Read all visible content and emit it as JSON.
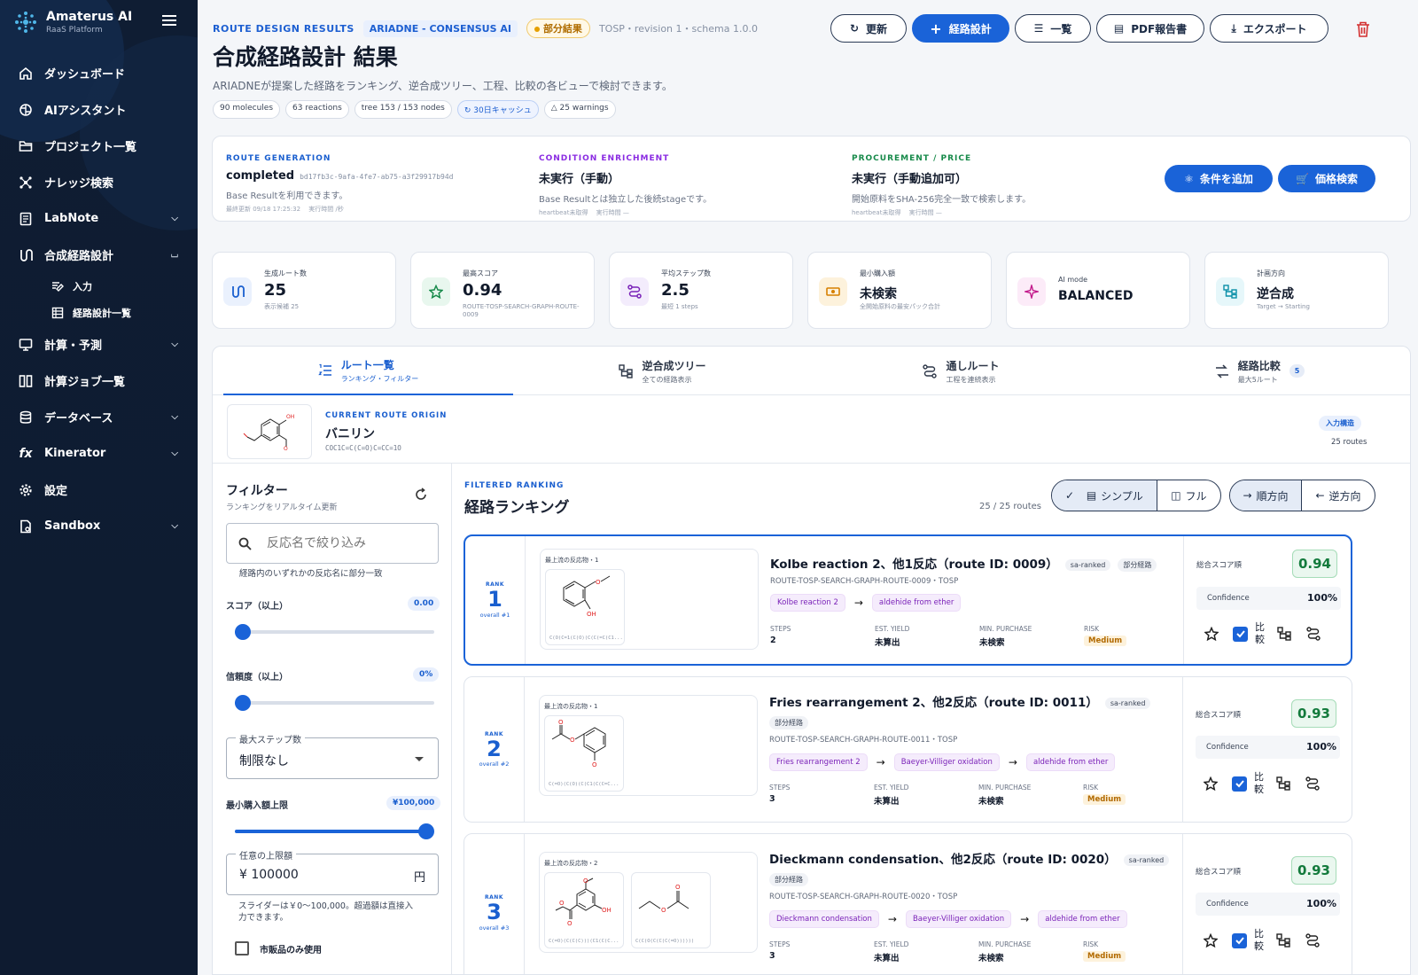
{
  "sidebar": {
    "brand": "Amaterus AI",
    "brand_sub": "RaaS Platform",
    "items": [
      {
        "label": "ダッシュボード"
      },
      {
        "label": "AIアシスタント"
      },
      {
        "label": "プロジェクト一覧"
      },
      {
        "label": "ナレッジ検索"
      },
      {
        "label": "LabNote"
      },
      {
        "label": "合成経路設計"
      },
      {
        "label": "入力"
      },
      {
        "label": "経路設計一覧"
      },
      {
        "label": "計算・予測"
      },
      {
        "label": "計算ジョブ一覧"
      },
      {
        "label": "データベース"
      },
      {
        "label": "Kinerator"
      },
      {
        "label": "設定"
      },
      {
        "label": "Sandbox"
      }
    ]
  },
  "header": {
    "crumb": "ROUTE DESIGN RESULTS",
    "engine": "ARIADNE - CONSENSUS AI",
    "status": "部分結果",
    "meta": "TOSP・revision 1・schema 1.0.0",
    "title": "合成経路設計 結果",
    "desc": "ARIADNEが提案した経路をランキング、逆合成ツリー、工程、比較の各ビューで検討できます。",
    "chips": [
      "90 molecules",
      "63 reactions",
      "tree 153 / 153 nodes",
      "30日キャッシュ",
      "25 warnings"
    ],
    "buttons": {
      "refresh": "更新",
      "design": "経路設計",
      "list": "一覧",
      "pdf": "PDF報告書",
      "export": "エクスポート"
    }
  },
  "stages": [
    {
      "head": "ROUTE GENERATION",
      "value": "completed",
      "hash": "bd17fb3c-9afa-4fe7-ab75-a3f29917b94d",
      "desc": "Base Resultを利用できます。",
      "meta": "最終更新 09/18 17:25:32　 実行時間 /秒",
      "color": "#1a5fcf"
    },
    {
      "head": "CONDITION ENRICHMENT",
      "value": "未実行（手動）",
      "desc": "Base Resultとは独立した後続stageです。",
      "meta": "heartbeat未取得　 実行時間 —",
      "color": "#8a2be2"
    },
    {
      "head": "PROCUREMENT / PRICE",
      "value": "未実行（手動追加可）",
      "desc": "開始原料をSHA-256完全一致で検索します。",
      "meta": "heartbeat未取得　 実行時間 —",
      "color": "#178a4a"
    }
  ],
  "stage_buttons": {
    "conditions": "条件を追加",
    "price": "価格検索"
  },
  "kpis": [
    {
      "label": "生成ルート数",
      "value": "25",
      "sub": "表示候補 25"
    },
    {
      "label": "最高スコア",
      "value": "0.94",
      "sub": "ROUTE-TOSP-SEARCH-GRAPH-ROUTE-0009"
    },
    {
      "label": "平均ステップ数",
      "value": "2.5",
      "sub": "最短 1 steps"
    },
    {
      "label": "最小購入額",
      "value": "未検索",
      "sub": "全開始原料の最安パック合計"
    },
    {
      "label": "AI mode",
      "value": "BALANCED",
      "sub": ""
    },
    {
      "label": "計画方向",
      "value": "逆合成",
      "sub": "Target → Starting"
    }
  ],
  "tabs": [
    {
      "label": "ルート一覧",
      "sub": "ランキング・フィルター"
    },
    {
      "label": "逆合成ツリー",
      "sub": "全ての経路表示"
    },
    {
      "label": "通しルート",
      "sub": "工程を連続表示"
    },
    {
      "label": "経路比較",
      "sub": "最大5ルート",
      "badge": "5"
    }
  ],
  "origin": {
    "kicker": "CURRENT ROUTE ORIGIN",
    "name": "バニリン",
    "smiles": "COC1C=C(C=O)C=CC=1O",
    "tag": "入力構造",
    "count": "25 routes"
  },
  "filter": {
    "title": "フィルター",
    "sub": "ランキングをリアルタイム更新",
    "search_placeholder": "反応名で絞り込み",
    "search_hint": "経路内のいずれかの反応名に部分一致",
    "score_label": "スコア（以上）",
    "score_value": "0.00",
    "score_level": 0,
    "conf_label": "信頼度（以上）",
    "conf_value": "0%",
    "conf_level": 0,
    "steps_legend": "最大ステップ数",
    "steps_value": "制限なし",
    "budget_label": "最小購入額上限",
    "budget_value": "¥100,000",
    "budget_level": 1,
    "custom_legend": "任意の上限額",
    "custom_value": "¥ 100000",
    "custom_unit": "円",
    "custom_note": "スライダーは￥0〜100,000。超過額は直接入力できます。",
    "commercial": "市販品のみ使用"
  },
  "ranking": {
    "kicker": "FILTERED RANKING",
    "title": "経路ランキング",
    "count": "25 / 25 routes",
    "view": {
      "simple": "シンプル",
      "full": "フル"
    },
    "dir": {
      "fwd": "順方向",
      "rev": "逆方向"
    },
    "labels": {
      "rank": "RANK",
      "precursor": "最上流の反応物・",
      "steps": "STEPS",
      "yield": "EST. YIELD",
      "purchase": "MIN. PURCHASE",
      "risk": "RISK",
      "score": "総合スコア順",
      "confidence": "Confidence",
      "compare": "比較"
    },
    "routes": [
      {
        "rank": "1",
        "overall": "overall #1",
        "nprec": "1",
        "name": "Kolbe reaction 2、他1反応（route ID: 0009）",
        "tags": [
          "sa-ranked",
          "部分経路"
        ],
        "rid": "ROUTE-TOSP-SEARCH-GRAPH-ROUTE-0009・TOSP",
        "rxns": [
          "Kolbe reaction 2",
          "aldehide from ether"
        ],
        "steps": "2",
        "yield": "未算出",
        "purchase": "未検索",
        "risk": "Medium",
        "score": "0.94",
        "conf": "100%",
        "smiles": [
          "C(O(C=1(C(O)(C(C(=C(C1..."
        ]
      },
      {
        "rank": "2",
        "overall": "overall #2",
        "nprec": "1",
        "name": "Fries rearrangement 2、他2反応（route ID: 0011）",
        "tags": [
          "sa-ranked",
          "部分経路"
        ],
        "rid": "ROUTE-TOSP-SEARCH-GRAPH-ROUTE-0011・TOSP",
        "rxns": [
          "Fries rearrangement 2",
          "Baeyer-Villiger oxidation",
          "aldehide from ether"
        ],
        "steps": "3",
        "yield": "未算出",
        "purchase": "未検索",
        "risk": "Medium",
        "score": "0.93",
        "conf": "100%",
        "smiles": [
          "C(=O)(C(O)(C(C1(C(C=C..."
        ]
      },
      {
        "rank": "3",
        "overall": "overall #3",
        "nprec": "2",
        "name": "Dieckmann condensation、他2反応（route ID: 0020）",
        "tags": [
          "sa-ranked",
          "部分経路"
        ],
        "rid": "ROUTE-TOSP-SEARCH-GRAPH-ROUTE-0020・TOSP",
        "rxns": [
          "Dieckmann condensation",
          "Baeyer-Villiger oxidation",
          "aldehide from ether"
        ],
        "steps": "3",
        "yield": "未算出",
        "purchase": "未検索",
        "risk": "Medium",
        "score": "0.93",
        "conf": "100%",
        "smiles": [
          "C(=O)(C(C(C)))(C1(C(C...",
          "C(C(O(C(C(C(=O))))))"
        ]
      }
    ]
  }
}
